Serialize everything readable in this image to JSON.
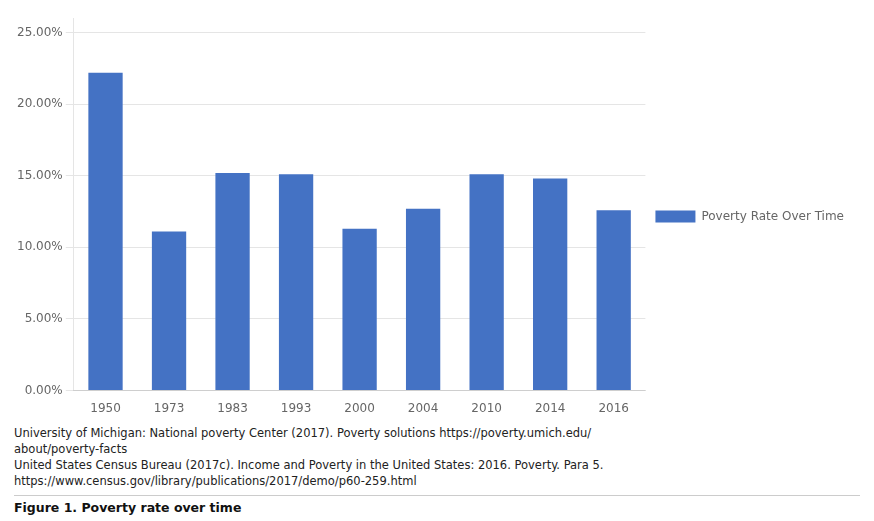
{
  "chart_data": {
    "type": "bar",
    "categories": [
      "1950",
      "1973",
      "1983",
      "1993",
      "2000",
      "2004",
      "2010",
      "2014",
      "2016"
    ],
    "series": [
      {
        "name": "Poverty Rate Over Time",
        "color": "#4472C4",
        "values": [
          0.222,
          0.111,
          0.152,
          0.151,
          0.113,
          0.127,
          0.151,
          0.148,
          0.126
        ]
      }
    ],
    "ylim": [
      0,
      0.26
    ],
    "yticks": [
      {
        "value": 0,
        "label": "0.00%"
      },
      {
        "value": 0.05,
        "label": "5.00%"
      },
      {
        "value": 0.1,
        "label": "10.00%"
      },
      {
        "value": 0.15,
        "label": "15.00%"
      },
      {
        "value": 0.2,
        "label": "20.00%"
      },
      {
        "value": 0.25,
        "label": "25.00%"
      }
    ],
    "grid": true,
    "legend": "right",
    "annotations": [
      "University of Michigan: National poverty Center (2017). Poverty solutions https://poverty.umich.edu/",
      "about/poverty-facts",
      "United States Census Bureau (2017c). Income and Poverty in the United States: 2016. Poverty. Para 5.",
      "https://www.census.gov/library/publications/2017/demo/p60-259.html"
    ],
    "caption": "Figure 1. Poverty rate over time"
  }
}
